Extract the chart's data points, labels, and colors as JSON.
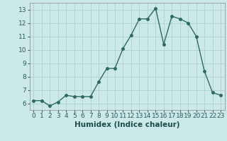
{
  "x": [
    0,
    1,
    2,
    3,
    4,
    5,
    6,
    7,
    8,
    9,
    10,
    11,
    12,
    13,
    14,
    15,
    16,
    17,
    18,
    19,
    20,
    21,
    22,
    23
  ],
  "y": [
    6.2,
    6.2,
    5.8,
    6.1,
    6.6,
    6.5,
    6.5,
    6.5,
    7.6,
    8.6,
    8.6,
    10.1,
    11.1,
    12.3,
    12.3,
    13.1,
    10.4,
    12.5,
    12.3,
    12.0,
    11.0,
    8.4,
    6.8,
    6.6
  ],
  "line_color": "#2e6b5e",
  "marker": "o",
  "markersize": 2.5,
  "linewidth": 1.0,
  "background_color": "#cce9e9",
  "grid_color": "#b0d0d0",
  "xlabel": "Humidex (Indice chaleur)",
  "xlim": [
    -0.5,
    23.5
  ],
  "ylim": [
    5.5,
    13.5
  ],
  "yticks": [
    6,
    7,
    8,
    9,
    10,
    11,
    12,
    13
  ],
  "xticks": [
    0,
    1,
    2,
    3,
    4,
    5,
    6,
    7,
    8,
    9,
    10,
    11,
    12,
    13,
    14,
    15,
    16,
    17,
    18,
    19,
    20,
    21,
    22,
    23
  ],
  "tick_labelsize": 6.5,
  "xlabel_fontsize": 7.5
}
